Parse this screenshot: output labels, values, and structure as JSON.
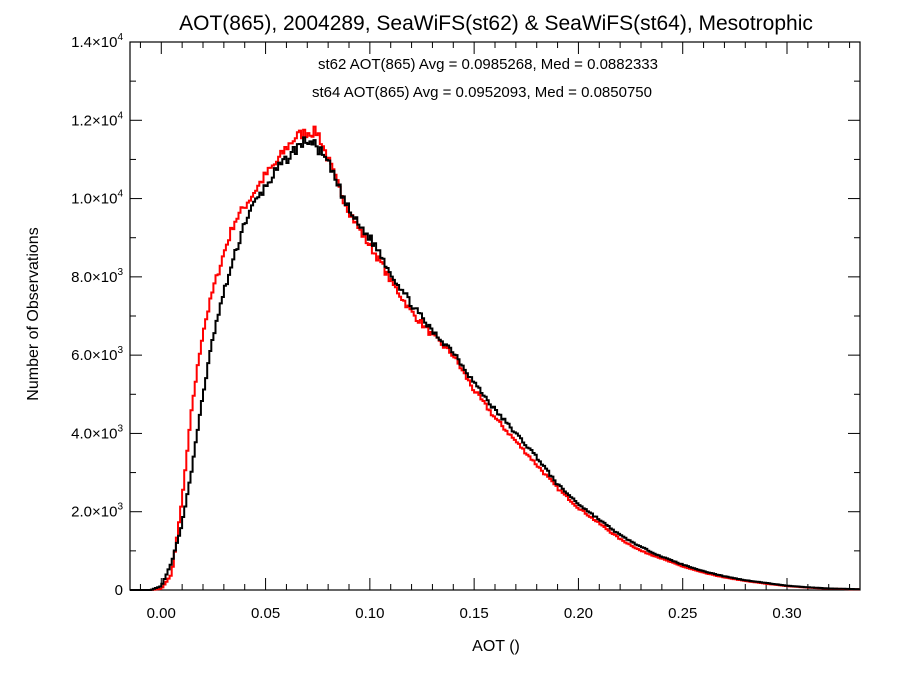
{
  "chart_data": {
    "type": "line",
    "title": "AOT(865), 2004289, SeaWiFS(st62) & SeaWiFS(st64), Mesotrophic",
    "xlabel": "AOT ()",
    "ylabel": "Number of Observations",
    "xlim": [
      -0.015,
      0.335
    ],
    "ylim": [
      0,
      14000
    ],
    "x_ticks": [
      {
        "value": 0.0,
        "label": "0.00"
      },
      {
        "value": 0.05,
        "label": "0.05"
      },
      {
        "value": 0.1,
        "label": "0.10"
      },
      {
        "value": 0.15,
        "label": "0.15"
      },
      {
        "value": 0.2,
        "label": "0.20"
      },
      {
        "value": 0.25,
        "label": "0.25"
      },
      {
        "value": 0.3,
        "label": "0.30"
      }
    ],
    "y_ticks": [
      {
        "value": 0,
        "mant": "0",
        "exp": ""
      },
      {
        "value": 2000,
        "mant": "2.0×10",
        "exp": "3"
      },
      {
        "value": 4000,
        "mant": "4.0×10",
        "exp": "3"
      },
      {
        "value": 6000,
        "mant": "6.0×10",
        "exp": "3"
      },
      {
        "value": 8000,
        "mant": "8.0×10",
        "exp": "3"
      },
      {
        "value": 10000,
        "mant": "1.0×10",
        "exp": "4"
      },
      {
        "value": 12000,
        "mant": "1.2×10",
        "exp": "4"
      },
      {
        "value": 14000,
        "mant": "1.4×10",
        "exp": "4"
      }
    ],
    "annotations": [
      {
        "text": "st62 AOT(865) Avg = 0.0985268, Med = 0.0882333",
        "color": "#000000"
      },
      {
        "text": "st64 AOT(865) Avg = 0.0952093, Med = 0.0850750",
        "color": "#ff0000"
      }
    ],
    "series": [
      {
        "color": "#000000",
        "x": [
          -0.015,
          -0.005,
          0.0,
          0.005,
          0.01,
          0.015,
          0.02,
          0.025,
          0.03,
          0.035,
          0.04,
          0.045,
          0.05,
          0.055,
          0.06,
          0.065,
          0.07,
          0.075,
          0.08,
          0.085,
          0.09,
          0.095,
          0.1,
          0.105,
          0.11,
          0.12,
          0.13,
          0.14,
          0.15,
          0.16,
          0.17,
          0.18,
          0.19,
          0.2,
          0.21,
          0.22,
          0.23,
          0.24,
          0.25,
          0.26,
          0.27,
          0.28,
          0.29,
          0.3,
          0.31,
          0.32,
          0.335
        ],
        "y": [
          0,
          0,
          100,
          700,
          1700,
          3200,
          5000,
          6500,
          7600,
          8500,
          9400,
          9900,
          10300,
          10700,
          11000,
          11300,
          11500,
          11300,
          10900,
          10300,
          9700,
          9300,
          9000,
          8600,
          8100,
          7300,
          6600,
          6100,
          5300,
          4600,
          4000,
          3400,
          2700,
          2200,
          1800,
          1400,
          1100,
          850,
          650,
          480,
          350,
          250,
          180,
          110,
          70,
          40,
          20
        ]
      },
      {
        "color": "#ff0000",
        "x": [
          -0.015,
          -0.005,
          0.0,
          0.005,
          0.01,
          0.015,
          0.02,
          0.025,
          0.03,
          0.035,
          0.04,
          0.045,
          0.05,
          0.055,
          0.06,
          0.065,
          0.07,
          0.075,
          0.08,
          0.085,
          0.09,
          0.095,
          0.1,
          0.105,
          0.11,
          0.12,
          0.13,
          0.14,
          0.15,
          0.16,
          0.17,
          0.18,
          0.19,
          0.2,
          0.21,
          0.22,
          0.23,
          0.24,
          0.25,
          0.26,
          0.27,
          0.28,
          0.29,
          0.3,
          0.31,
          0.32,
          0.335
        ],
        "y": [
          0,
          0,
          30,
          400,
          2300,
          4800,
          6600,
          7700,
          8600,
          9400,
          9800,
          10200,
          10600,
          10900,
          11300,
          11600,
          11700,
          11700,
          11000,
          10300,
          9700,
          9200,
          8800,
          8400,
          7900,
          7100,
          6500,
          6000,
          5100,
          4400,
          3800,
          3200,
          2600,
          2100,
          1700,
          1300,
          1000,
          800,
          600,
          440,
          320,
          230,
          160,
          100,
          60,
          35,
          15
        ]
      }
    ]
  }
}
